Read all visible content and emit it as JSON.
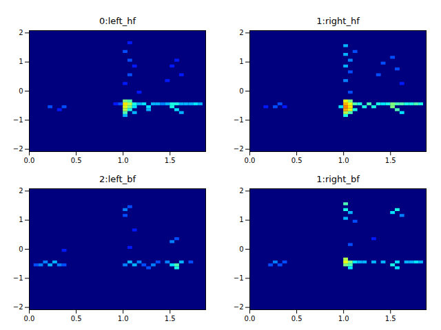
{
  "chart_data": [
    {
      "type": "heatmap",
      "title": "0:left_hf",
      "xlim": [
        0,
        1.88
      ],
      "xticks": [
        {
          "value": 0,
          "label": "0.0"
        },
        {
          "value": 0.5,
          "label": "0.5"
        },
        {
          "value": 1,
          "label": "1.0"
        },
        {
          "value": 1.5,
          "label": "1.5"
        }
      ],
      "ylim": [
        -2.08,
        2.08
      ],
      "yticks": [
        -2,
        -1,
        0,
        1,
        2
      ],
      "cell_size": [
        0.05,
        0.1
      ],
      "value_range": [
        0,
        1
      ],
      "cells": [
        [
          0.2,
          -0.6,
          0.2
        ],
        [
          0.3,
          -0.7,
          0.15
        ],
        [
          0.35,
          -0.6,
          0.2
        ],
        [
          1.0,
          -0.9,
          0.3
        ],
        [
          1.0,
          -0.8,
          0.45
        ],
        [
          1.0,
          -0.7,
          0.55
        ],
        [
          1.0,
          -0.6,
          0.6
        ],
        [
          1.0,
          -0.5,
          0.65
        ],
        [
          1.0,
          -0.4,
          0.5
        ],
        [
          1.05,
          -0.7,
          0.4
        ],
        [
          1.05,
          -0.6,
          0.5
        ],
        [
          1.05,
          -0.5,
          0.55
        ],
        [
          1.05,
          -0.4,
          0.45
        ],
        [
          1.1,
          -0.8,
          0.3
        ],
        [
          1.1,
          -0.6,
          0.35
        ],
        [
          1.1,
          -0.5,
          0.4
        ],
        [
          1.15,
          -0.5,
          0.3
        ],
        [
          1.2,
          -0.5,
          0.35
        ],
        [
          1.25,
          -0.6,
          0.35
        ],
        [
          1.25,
          -0.7,
          0.3
        ],
        [
          1.3,
          -0.5,
          0.3
        ],
        [
          1.35,
          -0.5,
          0.3
        ],
        [
          1.4,
          -0.5,
          0.25
        ],
        [
          1.45,
          -0.5,
          0.3
        ],
        [
          1.5,
          -0.6,
          0.4
        ],
        [
          1.5,
          -0.5,
          0.4
        ],
        [
          1.55,
          -0.7,
          0.35
        ],
        [
          1.55,
          -0.5,
          0.4
        ],
        [
          1.6,
          -0.8,
          0.3
        ],
        [
          1.6,
          -0.5,
          0.3
        ],
        [
          1.65,
          -0.5,
          0.3
        ],
        [
          1.7,
          -0.5,
          0.3
        ],
        [
          1.75,
          -0.5,
          0.35
        ],
        [
          1.8,
          -0.5,
          0.3
        ],
        [
          0.9,
          -0.5,
          0.15
        ],
        [
          0.95,
          -0.5,
          0.2
        ],
        [
          1.0,
          0.2,
          0.15
        ],
        [
          1.05,
          0.5,
          0.2
        ],
        [
          1.05,
          1.0,
          0.2
        ],
        [
          1.0,
          1.3,
          0.2
        ],
        [
          1.05,
          1.6,
          0.15
        ],
        [
          1.1,
          0.8,
          0.15
        ],
        [
          1.15,
          -0.1,
          0.15
        ],
        [
          1.45,
          0.3,
          0.15
        ],
        [
          1.5,
          0.8,
          0.15
        ],
        [
          1.55,
          1.0,
          0.15
        ],
        [
          1.6,
          0.5,
          0.15
        ]
      ]
    },
    {
      "type": "heatmap",
      "title": "1:right_hf",
      "xlim": [
        0,
        1.88
      ],
      "xticks": [
        {
          "value": 0,
          "label": "0.0"
        },
        {
          "value": 0.5,
          "label": "0.5"
        },
        {
          "value": 1,
          "label": "1.0"
        },
        {
          "value": 1.5,
          "label": "1.5"
        }
      ],
      "ylim": [
        -2.08,
        2.08
      ],
      "yticks": [
        -2,
        -1,
        0,
        1,
        2
      ],
      "cell_size": [
        0.05,
        0.1
      ],
      "value_range": [
        0,
        1
      ],
      "cells": [
        [
          0.25,
          -0.6,
          0.2
        ],
        [
          0.3,
          -0.5,
          0.2
        ],
        [
          0.35,
          -0.6,
          0.15
        ],
        [
          0.15,
          -0.6,
          0.15
        ],
        [
          1.0,
          -0.9,
          0.4
        ],
        [
          1.0,
          -0.8,
          0.55
        ],
        [
          1.0,
          -0.7,
          0.7
        ],
        [
          1.0,
          -0.6,
          0.75
        ],
        [
          1.0,
          -0.5,
          0.7
        ],
        [
          1.0,
          -0.4,
          0.6
        ],
        [
          1.05,
          -0.8,
          0.45
        ],
        [
          1.05,
          -0.7,
          0.6
        ],
        [
          1.05,
          -0.6,
          0.65
        ],
        [
          1.05,
          -0.5,
          0.6
        ],
        [
          1.05,
          -0.4,
          0.5
        ],
        [
          1.1,
          -0.7,
          0.4
        ],
        [
          1.1,
          -0.5,
          0.45
        ],
        [
          0.95,
          -0.6,
          0.35
        ],
        [
          1.15,
          -0.5,
          0.4
        ],
        [
          1.2,
          -0.6,
          0.4
        ],
        [
          1.25,
          -0.5,
          0.45
        ],
        [
          1.3,
          -0.6,
          0.4
        ],
        [
          1.35,
          -0.5,
          0.4
        ],
        [
          1.4,
          -0.5,
          0.35
        ],
        [
          1.45,
          -0.5,
          0.4
        ],
        [
          1.5,
          -0.6,
          0.5
        ],
        [
          1.5,
          -0.5,
          0.5
        ],
        [
          1.55,
          -0.7,
          0.45
        ],
        [
          1.55,
          -0.5,
          0.45
        ],
        [
          1.6,
          -0.8,
          0.35
        ],
        [
          1.6,
          -0.5,
          0.45
        ],
        [
          1.65,
          -0.5,
          0.4
        ],
        [
          1.7,
          -0.5,
          0.4
        ],
        [
          1.75,
          -0.5,
          0.45
        ],
        [
          1.8,
          -0.5,
          0.4
        ],
        [
          1.0,
          0.3,
          0.25
        ],
        [
          1.0,
          0.8,
          0.3
        ],
        [
          1.0,
          1.2,
          0.3
        ],
        [
          1.0,
          1.5,
          0.3
        ],
        [
          1.05,
          1.0,
          0.25
        ],
        [
          1.05,
          0.6,
          0.2
        ],
        [
          1.1,
          1.3,
          0.2
        ],
        [
          1.05,
          -0.1,
          0.2
        ],
        [
          1.35,
          0.5,
          0.2
        ],
        [
          1.4,
          0.9,
          0.2
        ],
        [
          1.5,
          1.1,
          0.2
        ],
        [
          1.55,
          0.7,
          0.2
        ],
        [
          1.6,
          0.2,
          0.15
        ]
      ]
    },
    {
      "type": "heatmap",
      "title": "2:left_bf",
      "xlim": [
        0,
        1.88
      ],
      "xticks": [
        {
          "value": 0,
          "label": "0.0"
        },
        {
          "value": 0.5,
          "label": "0.5"
        },
        {
          "value": 1,
          "label": "1.0"
        },
        {
          "value": 1.5,
          "label": "1.5"
        }
      ],
      "ylim": [
        -2.08,
        2.08
      ],
      "yticks": [
        -2,
        -1,
        0,
        1,
        2
      ],
      "cell_size": [
        0.05,
        0.1
      ],
      "value_range": [
        0,
        1
      ],
      "cells": [
        [
          0.05,
          -0.6,
          0.2
        ],
        [
          0.1,
          -0.6,
          0.25
        ],
        [
          0.15,
          -0.5,
          0.25
        ],
        [
          0.2,
          -0.6,
          0.3
        ],
        [
          0.25,
          -0.5,
          0.3
        ],
        [
          0.3,
          -0.6,
          0.25
        ],
        [
          0.35,
          -0.6,
          0.2
        ],
        [
          0.35,
          -0.1,
          0.15
        ],
        [
          1.0,
          1.3,
          0.25
        ],
        [
          1.0,
          1.1,
          0.2
        ],
        [
          1.05,
          1.4,
          0.2
        ],
        [
          1.0,
          -0.6,
          0.25
        ],
        [
          1.05,
          -0.5,
          0.3
        ],
        [
          1.1,
          -0.6,
          0.3
        ],
        [
          1.15,
          -0.5,
          0.25
        ],
        [
          1.2,
          -0.6,
          0.2
        ],
        [
          1.25,
          -0.7,
          0.2
        ],
        [
          1.3,
          -0.6,
          0.25
        ],
        [
          1.35,
          -0.5,
          0.2
        ],
        [
          1.45,
          -0.5,
          0.25
        ],
        [
          1.5,
          -0.6,
          0.35
        ],
        [
          1.55,
          -0.7,
          0.4
        ],
        [
          1.55,
          -0.6,
          0.45
        ],
        [
          1.5,
          0.2,
          0.25
        ],
        [
          1.55,
          0.3,
          0.2
        ],
        [
          1.6,
          -0.5,
          0.3
        ],
        [
          1.7,
          -0.5,
          0.2
        ],
        [
          1.1,
          0.6,
          0.15
        ],
        [
          1.05,
          0.0,
          0.15
        ]
      ]
    },
    {
      "type": "heatmap",
      "title": "1:right_bf",
      "xlim": [
        0,
        1.88
      ],
      "xticks": [
        {
          "value": 0,
          "label": "0.0"
        },
        {
          "value": 0.5,
          "label": "0.5"
        },
        {
          "value": 1,
          "label": "1.0"
        },
        {
          "value": 1.5,
          "label": "1.5"
        }
      ],
      "ylim": [
        -2.08,
        2.08
      ],
      "yticks": [
        -2,
        -1,
        0,
        1,
        2
      ],
      "cell_size": [
        0.05,
        0.1
      ],
      "value_range": [
        0,
        1
      ],
      "cells": [
        [
          0.2,
          -0.6,
          0.2
        ],
        [
          0.25,
          -0.5,
          0.25
        ],
        [
          0.3,
          -0.6,
          0.2
        ],
        [
          0.35,
          -0.5,
          0.2
        ],
        [
          1.0,
          -0.6,
          0.5
        ],
        [
          1.0,
          -0.5,
          0.6
        ],
        [
          1.0,
          -0.4,
          0.55
        ],
        [
          1.05,
          -0.6,
          0.45
        ],
        [
          1.05,
          -0.5,
          0.5
        ],
        [
          1.05,
          -0.7,
          0.35
        ],
        [
          1.1,
          -0.5,
          0.35
        ],
        [
          1.0,
          1.0,
          0.3
        ],
        [
          1.0,
          1.3,
          0.4
        ],
        [
          1.0,
          1.5,
          0.45
        ],
        [
          1.05,
          1.2,
          0.3
        ],
        [
          1.1,
          0.9,
          0.2
        ],
        [
          1.15,
          -0.5,
          0.3
        ],
        [
          1.2,
          -0.5,
          0.3
        ],
        [
          1.3,
          -0.5,
          0.3
        ],
        [
          1.4,
          -0.5,
          0.3
        ],
        [
          1.5,
          -0.6,
          0.4
        ],
        [
          1.55,
          -0.7,
          0.35
        ],
        [
          1.55,
          -0.5,
          0.35
        ],
        [
          1.5,
          1.2,
          0.35
        ],
        [
          1.55,
          1.3,
          0.4
        ],
        [
          1.6,
          1.1,
          0.25
        ],
        [
          1.65,
          -0.5,
          0.3
        ],
        [
          1.7,
          -0.5,
          0.3
        ],
        [
          1.75,
          -0.5,
          0.35
        ],
        [
          1.8,
          -0.5,
          0.3
        ],
        [
          1.05,
          0.1,
          0.2
        ],
        [
          1.3,
          0.3,
          0.15
        ]
      ]
    }
  ]
}
